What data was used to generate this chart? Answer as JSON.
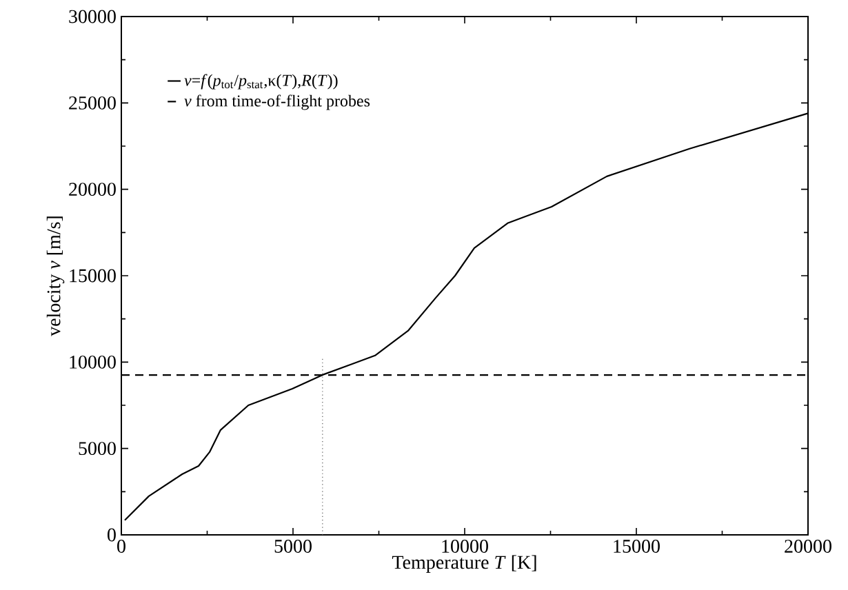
{
  "chart_data": {
    "type": "line",
    "xlabel": "Temperature  *T* [K]",
    "ylabel": "velocity *v* [m/s]",
    "xlim": [
      0,
      20000
    ],
    "ylim": [
      0,
      30000
    ],
    "xticks": [
      0,
      5000,
      10000,
      15000,
      20000
    ],
    "yticks": [
      0,
      5000,
      10000,
      15000,
      20000,
      25000,
      30000
    ],
    "grid": false,
    "legend": "top left",
    "series": [
      {
        "name": "*v*=*f*(*p*$_{tot}$/*p*$_{stat}$,κ(*T*),*R*(*T*))",
        "color": "#000000",
        "line_style": "solid",
        "x": [
          100,
          800,
          1770,
          2250,
          2570,
          2890,
          3700,
          4980,
          5860,
          7390,
          8350,
          9160,
          9720,
          10280,
          11250,
          12530,
          14140,
          16550,
          20000
        ],
        "values": [
          850,
          2240,
          3510,
          3990,
          4790,
          6070,
          7500,
          8460,
          9260,
          10380,
          11810,
          13730,
          15000,
          16600,
          18040,
          18990,
          20750,
          22350,
          24400
        ]
      },
      {
        "name": "*v* from time-of-flight probes",
        "color": "#000000",
        "line_style": "dashed",
        "x": [
          0,
          20000
        ],
        "values": [
          9250,
          9250
        ]
      },
      {
        "color": "#555555",
        "line_style": "dotted",
        "x": [
          5860,
          5860
        ],
        "values": [
          0,
          10200
        ]
      }
    ]
  }
}
